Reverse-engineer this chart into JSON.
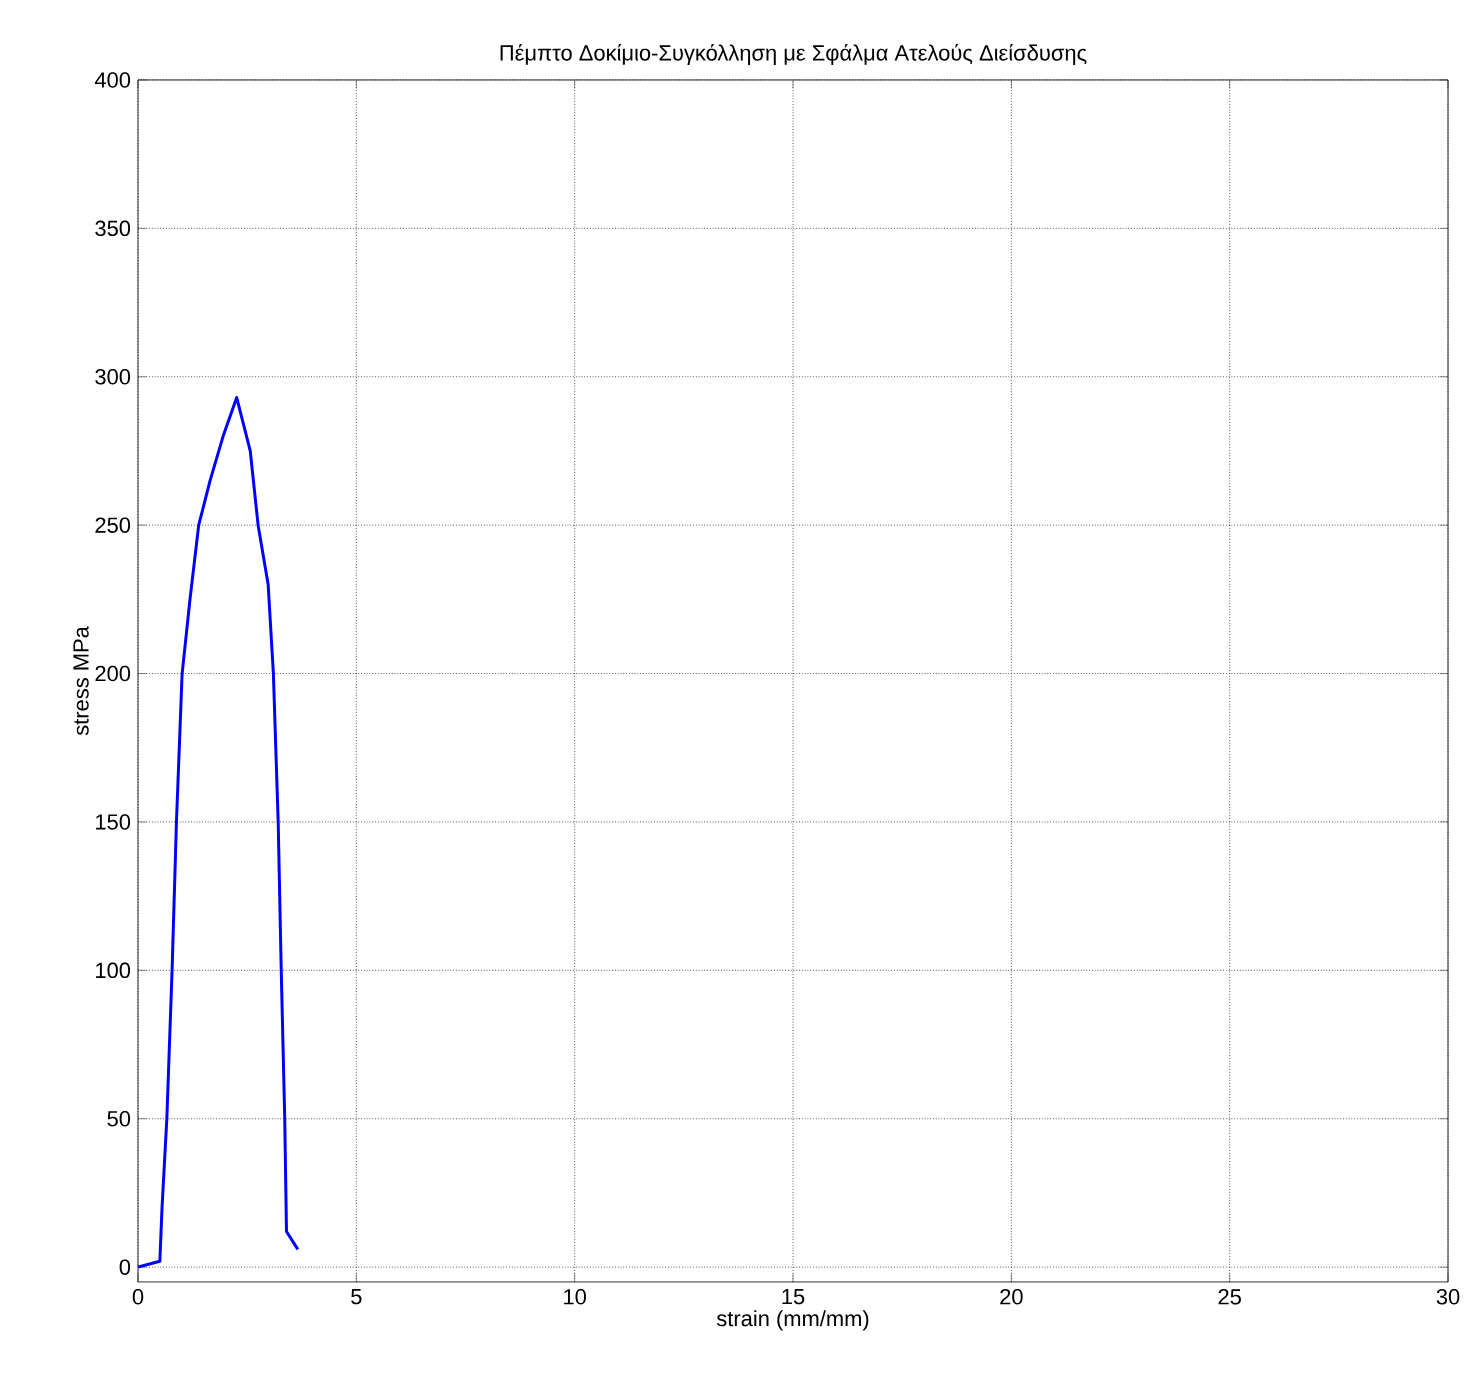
{
  "chart_data": {
    "type": "line",
    "title": "Πέμπτο Δοκίμιο-Συγκόλληση με Σφάλμα Ατελούς Διείσδυσης",
    "xlabel": "strain (mm/mm)",
    "ylabel": "stress MPa",
    "x": [
      0,
      0.5,
      0.55,
      0.66,
      0.78,
      0.88,
      1.01,
      1.19,
      1.39,
      1.65,
      1.95,
      2.26,
      2.57,
      2.75,
      2.98,
      3.1,
      3.21,
      3.28,
      3.36,
      3.4,
      3.66
    ],
    "series": [
      {
        "color": "#0000ff",
        "values": [
          0,
          2,
          20,
          50,
          100,
          150,
          200,
          225,
          250,
          265,
          280,
          293,
          275,
          250,
          230,
          200,
          150,
          100,
          50,
          12,
          6
        ]
      }
    ],
    "xlim": [
      0,
      30
    ],
    "ylim": [
      -5,
      400
    ],
    "xticks": [
      0,
      5,
      10,
      15,
      20,
      25,
      30
    ],
    "yticks": [
      0,
      50,
      100,
      150,
      200,
      250,
      300,
      350,
      400
    ],
    "grid": true,
    "marker": "none",
    "line_style": "solid"
  }
}
